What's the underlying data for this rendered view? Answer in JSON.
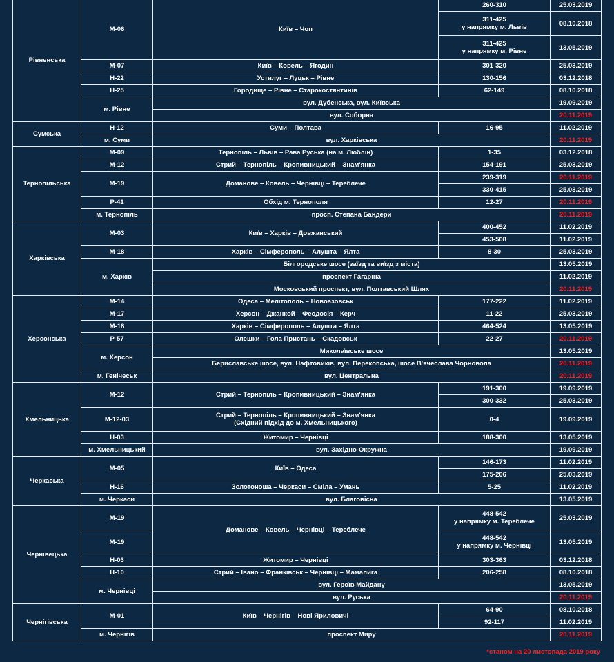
{
  "regions": [
    {
      "name": "Рівненська",
      "roads": [
        {
          "code": "М-06",
          "name": "Київ – Чоп",
          "sections": [
            {
              "km": "260-310",
              "date": "25.03.2019"
            },
            {
              "km": "311-425",
              "note": "у напрямку м. Львів",
              "date": "08.10.2018"
            },
            {
              "km": "311-425",
              "note": "у напрямку м. Рівне",
              "date": "13.05.2019"
            }
          ]
        },
        {
          "code": "М-07",
          "name": "Київ – Ковель – Ягодин",
          "sections": [
            {
              "km": "301-320",
              "date": "25.03.2019"
            }
          ]
        },
        {
          "code": "Н-22",
          "name": "Устилуг – Луцьк – Рівне",
          "sections": [
            {
              "km": "130-156",
              "date": "03.12.2018"
            }
          ]
        },
        {
          "code": "Н-25",
          "name": "Городище – Рівне – Старокостянтинів",
          "sections": [
            {
              "km": "62-149",
              "date": "08.10.2018"
            }
          ]
        },
        {
          "code": "м. Рівне",
          "streets": [
            {
              "name": "вул. Дубенська, вул. Київська",
              "date": "19.09.2019"
            },
            {
              "name": "вул. Соборна",
              "date": "20.11.2019",
              "color": "#ff2020"
            }
          ]
        }
      ]
    },
    {
      "name": "Сумська",
      "roads": [
        {
          "code": "Н-12",
          "name": "Суми – Полтава",
          "sections": [
            {
              "km": "16-95",
              "date": "11.02.2019"
            }
          ]
        },
        {
          "code": "м. Суми",
          "streets": [
            {
              "name": "вул. Харківська",
              "date": "20.11.2019",
              "color": "#ff2020"
            }
          ]
        }
      ]
    },
    {
      "name": "Тернопільська",
      "roads": [
        {
          "code": "М-09",
          "name": "Тернопіль – Львів – Рава Руська (на м. Люблін)",
          "sections": [
            {
              "km": "1-35",
              "date": "03.12.2018"
            }
          ]
        },
        {
          "code": "М-12",
          "name": "Стрий – Тернопіль – Кропивницький – Знам'янка",
          "sections": [
            {
              "km": "154-191",
              "date": "25.03.2019"
            }
          ]
        },
        {
          "code": "М-19",
          "name": "Доманове – Ковель – Чернівці – Тереблече",
          "sections": [
            {
              "km": "239-319",
              "date": "20.11.2019",
              "color": "#ff2020"
            },
            {
              "km": "330-415",
              "date": "25.03.2019"
            }
          ]
        },
        {
          "code": "Р-41",
          "name": "Обхід м. Тернополя",
          "sections": [
            {
              "km": "12-27",
              "date": "20.11.2019",
              "color": "#ff2020"
            }
          ]
        },
        {
          "code": "м. Тернопіль",
          "streets": [
            {
              "name": "просп. Степана Бандери",
              "date": "20.11.2019",
              "color": "#ff2020"
            }
          ]
        }
      ]
    },
    {
      "name": "Харківська",
      "roads": [
        {
          "code": "М-03",
          "name": "Київ – Харків – Довжанський",
          "sections": [
            {
              "km": "400-452",
              "date": "11.02.2019"
            },
            {
              "km": "453-508",
              "date": "11.02.2019"
            }
          ]
        },
        {
          "code": "М-18",
          "name": "Харків – Сімферополь – Алушта – Ялта",
          "sections": [
            {
              "km": "8-30",
              "date": "25.03.2019"
            }
          ]
        },
        {
          "code": "м. Харків",
          "streets": [
            {
              "name": "Білгородське шосе (заїзд та виїзд з міста)",
              "date": "13.05.2019"
            },
            {
              "name": "проспект Гагаріна",
              "date": "11.02.2019"
            },
            {
              "name": "Московський проспект, вул. Полтавський Шлях",
              "date": "20.11.2019",
              "color": "#ff2020"
            }
          ]
        }
      ]
    },
    {
      "name": "Херсонська",
      "roads": [
        {
          "code": "М-14",
          "name": "Одеса – Мелітополь – Новоазовськ",
          "sections": [
            {
              "km": "177-222",
              "date": "11.02.2019"
            }
          ]
        },
        {
          "code": "М-17",
          "name": "Херсон – Джанкой – Феодосія – Керч",
          "sections": [
            {
              "km": "11-22",
              "date": "25.03.2019"
            }
          ]
        },
        {
          "code": "М-18",
          "name": "Харків – Сімферополь – Алушта – Ялта",
          "sections": [
            {
              "km": "464-524",
              "date": "13.05.2019"
            }
          ]
        },
        {
          "code": "Р-57",
          "name": "Олешки – Гола Пристань – Скадовськ",
          "sections": [
            {
              "km": "22-27",
              "date": "20.11.2019",
              "color": "#ff2020"
            }
          ]
        },
        {
          "code": "м. Херсон",
          "streets": [
            {
              "name": "Миколаївське шосе",
              "date": "13.05.2019"
            },
            {
              "name": "Бериславське шосе, вул. Нафтовиків, вул. Перекопська, шосе В'ячеслава Чорновола",
              "date": "20.11.2019",
              "color": "#ff2020"
            }
          ]
        },
        {
          "code": "м. Генічеськ",
          "streets": [
            {
              "name": "вул. Центральна",
              "date": "20.11.2019",
              "color": "#ff2020"
            }
          ]
        }
      ]
    },
    {
      "name": "Хмельницька",
      "roads": [
        {
          "code": "М-12",
          "name": "Стрий – Тернопіль – Кропивницький – Знам'янка",
          "sections": [
            {
              "km": "191-300",
              "date": "19.09.2019"
            },
            {
              "km": "300-332",
              "date": "25.03.2019"
            }
          ]
        },
        {
          "code": "М-12-03",
          "name": "Стрий – Тернопіль – Кропивницький – Знам'янка",
          "name_note": "(Східний підхід до м. Хмельницького)",
          "sections": [
            {
              "km": "0-4",
              "date": "19.09.2019"
            }
          ]
        },
        {
          "code": "Н-03",
          "name": "Житомир – Чернівці",
          "sections": [
            {
              "km": "188-300",
              "date": "13.05.2019"
            }
          ]
        },
        {
          "code": "м. Хмельницький",
          "streets": [
            {
              "name": "вул. Західно-Окружна",
              "date": "19.09.2019"
            }
          ]
        }
      ]
    },
    {
      "name": "Черкаська",
      "roads": [
        {
          "code": "М-05",
          "name": "Київ – Одеса",
          "sections": [
            {
              "km": "146-173",
              "date": "11.02.2019"
            },
            {
              "km": "175-206",
              "date": "25.03.2019"
            }
          ]
        },
        {
          "code": "Н-16",
          "name": "Золотоноша – Черкаси – Сміла – Умань",
          "sections": [
            {
              "km": "5-25",
              "date": "11.02.2019"
            }
          ]
        },
        {
          "code": "м. Черкаси",
          "streets": [
            {
              "name": "вул. Благовісна",
              "date": "13.05.2019"
            }
          ]
        }
      ]
    },
    {
      "name": "Чернівецька",
      "roads": [
        {
          "name": "Доманове – Ковель – Чернівці – Тереблече",
          "sections": [
            {
              "code": "М-19",
              "km": "448-542",
              "note": "у напрямку м. Тереблече",
              "date": "25.03.2019"
            },
            {
              "code": "М-19",
              "km": "448-542",
              "note": "у напрямку м. Чернівці",
              "date": "13.05.2019"
            }
          ]
        },
        {
          "code": "Н-03",
          "name": "Житомир – Чернівці",
          "sections": [
            {
              "km": "303-363",
              "date": "03.12.2018"
            }
          ]
        },
        {
          "code": "Н-10",
          "name": "Стрий – Івано – Франківськ – Чернівці – Мамалига",
          "sections": [
            {
              "km": "206-258",
              "date": "08.10.2018"
            }
          ]
        },
        {
          "code": "м. Чернівці",
          "streets": [
            {
              "name": "вул. Героїв Майдану",
              "date": "13.05.2019"
            },
            {
              "name": "вул. Руська",
              "date": "20.11.2019",
              "color": "#ff2020"
            }
          ]
        }
      ]
    },
    {
      "name": "Чернігівська",
      "roads": [
        {
          "code": "М-01",
          "name": "Київ – Чернігів – Нові Яриловичі",
          "sections": [
            {
              "km": "64-90",
              "date": "08.10.2018"
            },
            {
              "km": "92-117",
              "date": "11.02.2019"
            }
          ]
        },
        {
          "code": "м. Чернігів",
          "streets": [
            {
              "name": "проспект Миру",
              "date": "20.11.2019",
              "color": "#ff2020"
            }
          ]
        }
      ]
    }
  ],
  "footnote": "*станом на 20 листопада 2019 року",
  "footnote_color": "#ff2020"
}
